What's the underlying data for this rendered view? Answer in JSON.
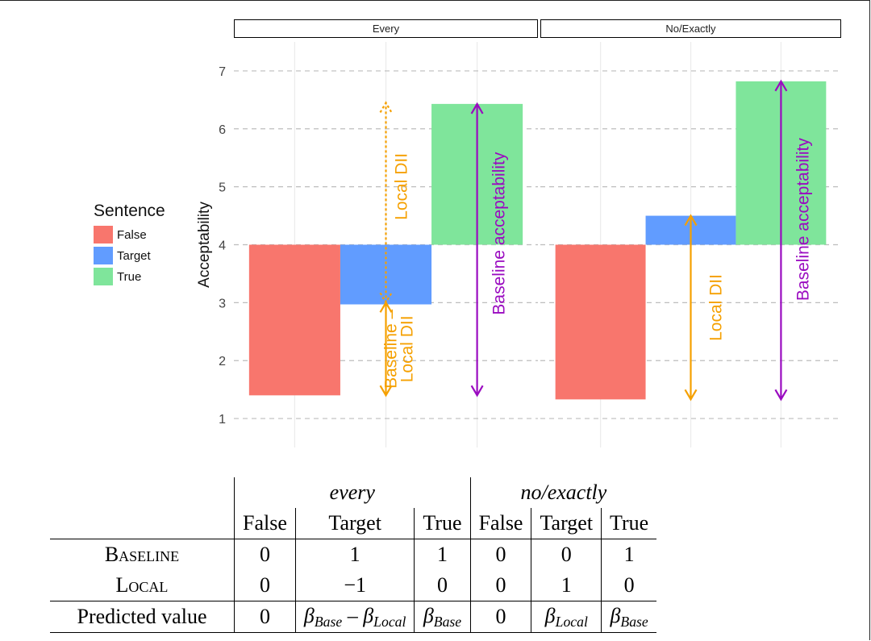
{
  "chart_data": {
    "type": "bar",
    "ylabel": "Acceptability",
    "ylim": [
      0.5,
      7.5
    ],
    "yticks": [
      1,
      2,
      3,
      4,
      5,
      6,
      7
    ],
    "baseline": 4,
    "grid": true,
    "legend": {
      "title": "Sentence",
      "placement": "left",
      "entries": [
        {
          "name": "False",
          "color": "#f8766d"
        },
        {
          "name": "Target",
          "color": "#619cff"
        },
        {
          "name": "True",
          "color": "#7fe59b"
        }
      ]
    },
    "categories": [
      "False",
      "Target",
      "True"
    ],
    "facets": [
      {
        "label": "Every",
        "values": [
          1.4,
          2.97,
          6.43
        ],
        "annotations": [
          {
            "text": "Local DII",
            "color": "#f5a000",
            "style": "dotted",
            "category": "Target",
            "y_from": 3.0,
            "y_to": 6.45
          },
          {
            "text": "Baseline –\nLocal DII",
            "color": "#f5a000",
            "style": "solid",
            "category": "Target",
            "y_from": 1.4,
            "y_to": 3.0
          },
          {
            "text": "Baseline acceptability",
            "color": "#9a0bc0",
            "style": "solid",
            "category": "True",
            "y_from": 1.4,
            "y_to": 6.43
          }
        ]
      },
      {
        "label": "No/Exactly",
        "values": [
          1.33,
          4.5,
          6.82
        ],
        "annotations": [
          {
            "text": "Local DII",
            "color": "#f5a000",
            "style": "solid",
            "category": "Target",
            "y_from": 1.33,
            "y_to": 4.5
          },
          {
            "text": "Baseline acceptability",
            "color": "#9a0bc0",
            "style": "solid",
            "category": "True",
            "y_from": 1.33,
            "y_to": 6.82
          }
        ]
      }
    ]
  },
  "table": {
    "groups": [
      "every",
      "no/exactly"
    ],
    "columns": [
      "False",
      "Target",
      "True",
      "False",
      "Target",
      "True"
    ],
    "rows": [
      {
        "label": "Baseline",
        "cells": [
          "0",
          "1",
          "1",
          "0",
          "0",
          "1"
        ]
      },
      {
        "label": "Local",
        "cells": [
          "0",
          "−1",
          "0",
          "0",
          "1",
          "0"
        ]
      }
    ],
    "predicted": {
      "label": "Predicted value",
      "cells": [
        {
          "text": "0"
        },
        {
          "beta1": "β",
          "sub1": "Base",
          "op": " – ",
          "beta2": "β",
          "sub2": "Local"
        },
        {
          "beta1": "β",
          "sub1": "Base"
        },
        {
          "text": "0"
        },
        {
          "beta1": "β",
          "sub1": "Local"
        },
        {
          "beta1": "β",
          "sub1": "Base"
        }
      ]
    }
  }
}
